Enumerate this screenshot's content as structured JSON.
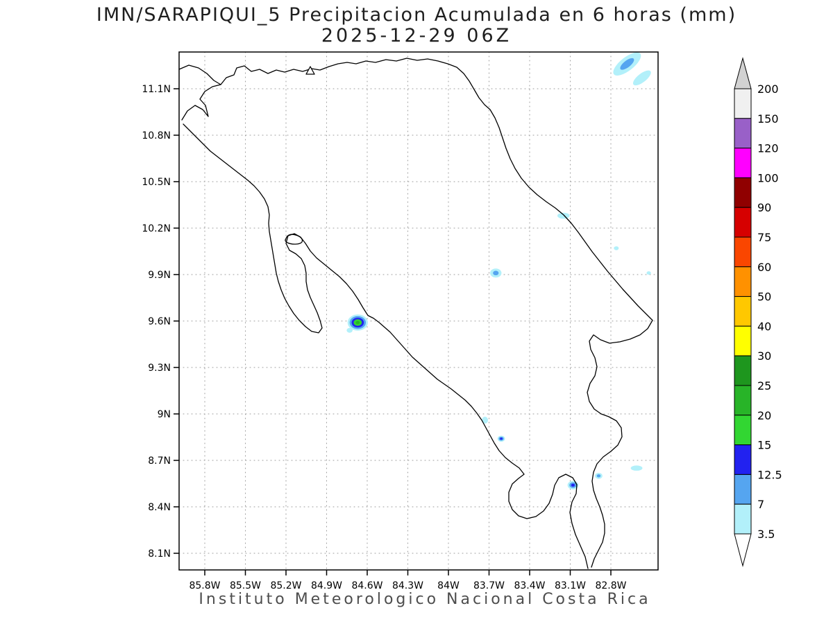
{
  "title": {
    "line1": "IMN/SARAPIQUI_5 Precipitacion Acumulada en 6 horas (mm)",
    "line2": "2025-12-29 06Z"
  },
  "footer": "Instituto Meteorologico Nacional Costa Rica",
  "axes": {
    "lat_ticks": [
      "11.1N",
      "10.8N",
      "10.5N",
      "10.2N",
      "9.9N",
      "9.6N",
      "9.3N",
      "9N",
      "8.7N",
      "8.4N",
      "8.1N"
    ],
    "lon_ticks": [
      "85.8W",
      "85.5W",
      "85.2W",
      "84.9W",
      "84.6W",
      "84.3W",
      "84W",
      "83.7W",
      "83.4W",
      "83.1W",
      "82.8W"
    ]
  },
  "colorbar": {
    "arrow_top_color": "#d2d2d2",
    "arrow_bottom_color": "#ffffff"
  },
  "chart_data": {
    "type": "heatmap",
    "title": "IMN/SARAPIQUI_5 Precipitacion Acumulada en 6 horas (mm)",
    "valid_time": "2025-12-29 06Z",
    "units": "mm",
    "region": "Costa Rica",
    "lon_axis_w_range": [
      85.8,
      82.8
    ],
    "lat_axis_n_range": [
      8.1,
      11.1
    ],
    "grid": true,
    "legend_position": "right",
    "levels_mm": [
      3.5,
      7,
      12.5,
      15,
      20,
      25,
      30,
      40,
      50,
      60,
      75,
      90,
      100,
      120,
      150,
      200
    ],
    "level_colors_asc": [
      "#b2f0fa",
      "#55a5f0",
      "#2222f0",
      "#32d632",
      "#28b428",
      "#1e961e",
      "#ffff00",
      "#ffc800",
      "#ff9100",
      "#fa4600",
      "#d60000",
      "#900000",
      "#ff00ff",
      "#9960c8",
      "#f0f0f0"
    ],
    "precip_cells": [
      {
        "lon_w": 84.67,
        "lat_n": 9.59,
        "max_mm": 20,
        "extent_deg": 0.075
      },
      {
        "lon_w": 84.73,
        "lat_n": 9.54,
        "max_mm": 3.5,
        "extent_deg": 0.022
      },
      {
        "lon_w": 83.65,
        "lat_n": 9.91,
        "max_mm": 7,
        "extent_deg": 0.042
      },
      {
        "lon_w": 83.15,
        "lat_n": 10.28,
        "max_mm": 3.5,
        "extent_deg": 0.028,
        "aspect": 1.6
      },
      {
        "lon_w": 82.76,
        "lat_n": 10.07,
        "max_mm": 3.5,
        "extent_deg": 0.018
      },
      {
        "lon_w": 82.52,
        "lat_n": 9.91,
        "max_mm": 3.5,
        "extent_deg": 0.016
      },
      {
        "lon_w": 83.73,
        "lat_n": 8.96,
        "max_mm": 3.5,
        "extent_deg": 0.032,
        "aspect": 0.7
      },
      {
        "lon_w": 83.61,
        "lat_n": 8.84,
        "max_mm": 12.5,
        "extent_deg": 0.028
      },
      {
        "lon_w": 83.08,
        "lat_n": 8.54,
        "max_mm": 12.5,
        "extent_deg": 0.04
      },
      {
        "lon_w": 82.89,
        "lat_n": 8.6,
        "max_mm": 7,
        "extent_deg": 0.028
      },
      {
        "lon_w": 82.61,
        "lat_n": 8.65,
        "max_mm": 3.5,
        "extent_deg": 0.024,
        "aspect": 1.8
      },
      {
        "lon_w": 82.68,
        "lat_n": 11.26,
        "max_mm": 7,
        "extent_deg": 0.062,
        "aspect": 2.0,
        "rotate_deg": -38
      },
      {
        "lon_w": 82.57,
        "lat_n": 11.17,
        "max_mm": 3.5,
        "extent_deg": 0.04,
        "aspect": 2.0,
        "rotate_deg": -38
      }
    ]
  }
}
